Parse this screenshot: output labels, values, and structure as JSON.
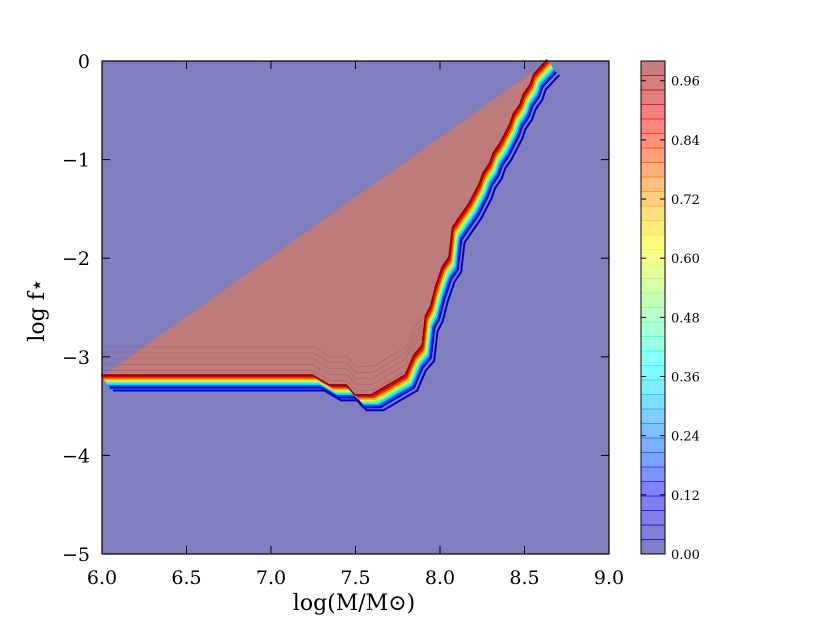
{
  "chart_data": {
    "type": "contour",
    "title": "",
    "xlabel": "log(M/M⊙)",
    "ylabel": "log f⋆",
    "xlim": [
      6.0,
      9.0
    ],
    "ylim": [
      -5,
      0
    ],
    "x_ticks": [
      "6.0",
      "6.5",
      "7.0",
      "7.5",
      "8.0",
      "8.5",
      "9.0"
    ],
    "y_ticks": [
      "0",
      "−1",
      "−2",
      "−3",
      "−4",
      "−5"
    ],
    "grid": false,
    "levels": {
      "min": 0.0,
      "max": 1.0
    },
    "colorbar": {
      "location": "right",
      "tick_labels": [
        "0.00",
        "0.12",
        "0.24",
        "0.36",
        "0.48",
        "0.60",
        "0.72",
        "0.84",
        "0.96"
      ],
      "tick_values": [
        0.0,
        0.12,
        0.24,
        0.36,
        0.48,
        0.6,
        0.72,
        0.84,
        0.96
      ],
      "colormap": "jet"
    },
    "regions": [
      {
        "value": 1.0,
        "color": "#bd7b7b",
        "description": "upper-left region"
      },
      {
        "value": 0.0,
        "color": "#7f7fbf",
        "description": "lower-right region"
      }
    ],
    "transition_boundary": [
      [
        6.0,
        -3.2
      ],
      [
        7.25,
        -3.2
      ],
      [
        7.35,
        -3.3
      ],
      [
        7.45,
        -3.3
      ],
      [
        7.5,
        -3.4
      ],
      [
        7.6,
        -3.4
      ],
      [
        7.8,
        -3.2
      ],
      [
        7.85,
        -3.0
      ],
      [
        7.9,
        -2.9
      ],
      [
        7.92,
        -2.6
      ],
      [
        7.95,
        -2.5
      ],
      [
        7.98,
        -2.3
      ],
      [
        8.02,
        -2.1
      ],
      [
        8.06,
        -2.0
      ],
      [
        8.08,
        -1.7
      ],
      [
        8.12,
        -1.6
      ],
      [
        8.18,
        -1.45
      ],
      [
        8.24,
        -1.25
      ],
      [
        8.26,
        -1.15
      ],
      [
        8.3,
        -1.05
      ],
      [
        8.32,
        -0.95
      ],
      [
        8.36,
        -0.85
      ],
      [
        8.42,
        -0.65
      ],
      [
        8.44,
        -0.55
      ],
      [
        8.48,
        -0.45
      ],
      [
        8.5,
        -0.35
      ],
      [
        8.54,
        -0.25
      ],
      [
        8.56,
        -0.15
      ],
      [
        8.64,
        0.0
      ]
    ],
    "shoulder_contours_offsets": [
      0.03,
      0.06,
      0.09,
      0.12,
      0.15
    ]
  }
}
